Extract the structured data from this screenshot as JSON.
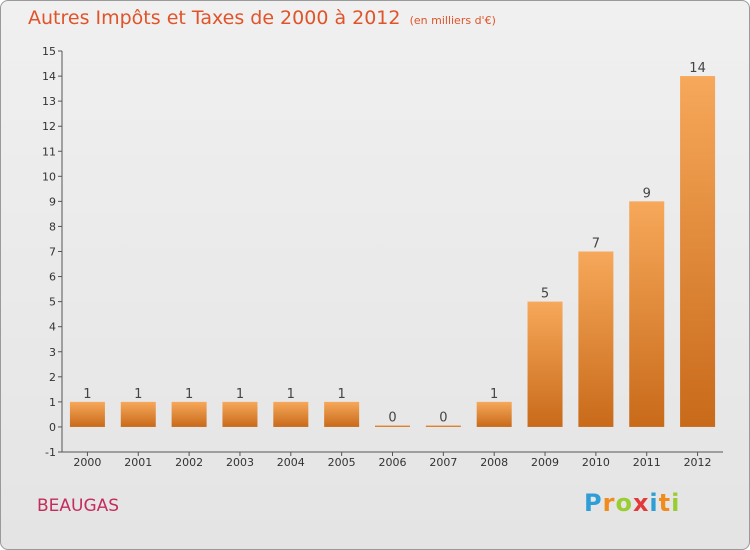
{
  "title": "Autres Impôts et Taxes de 2000 à 2012",
  "unit": "(en milliers d'€)",
  "commune": "BEAUGAS",
  "brand": {
    "letters": [
      "P",
      "r",
      "o",
      "x",
      "i",
      "t",
      "i"
    ]
  },
  "colors": {
    "bar_top": "#f7a85a",
    "bar_bottom": "#c86a1a",
    "title": "#e0542a",
    "commune": "#c42c5c"
  },
  "chart_data": {
    "type": "bar",
    "title": "Autres Impôts et Taxes de 2000 à 2012",
    "subtitle": "(en milliers d'€)",
    "categories": [
      "2000",
      "2001",
      "2002",
      "2003",
      "2004",
      "2005",
      "2006",
      "2007",
      "2008",
      "2009",
      "2010",
      "2011",
      "2012"
    ],
    "values": [
      1,
      1,
      1,
      1,
      1,
      1,
      0,
      0,
      1,
      5,
      7,
      9,
      14
    ],
    "ylim": [
      -1,
      15
    ],
    "yticks": [
      -1,
      0,
      1,
      2,
      3,
      4,
      5,
      6,
      7,
      8,
      9,
      10,
      11,
      12,
      13,
      14,
      15
    ],
    "grid": false,
    "legend": "none"
  }
}
